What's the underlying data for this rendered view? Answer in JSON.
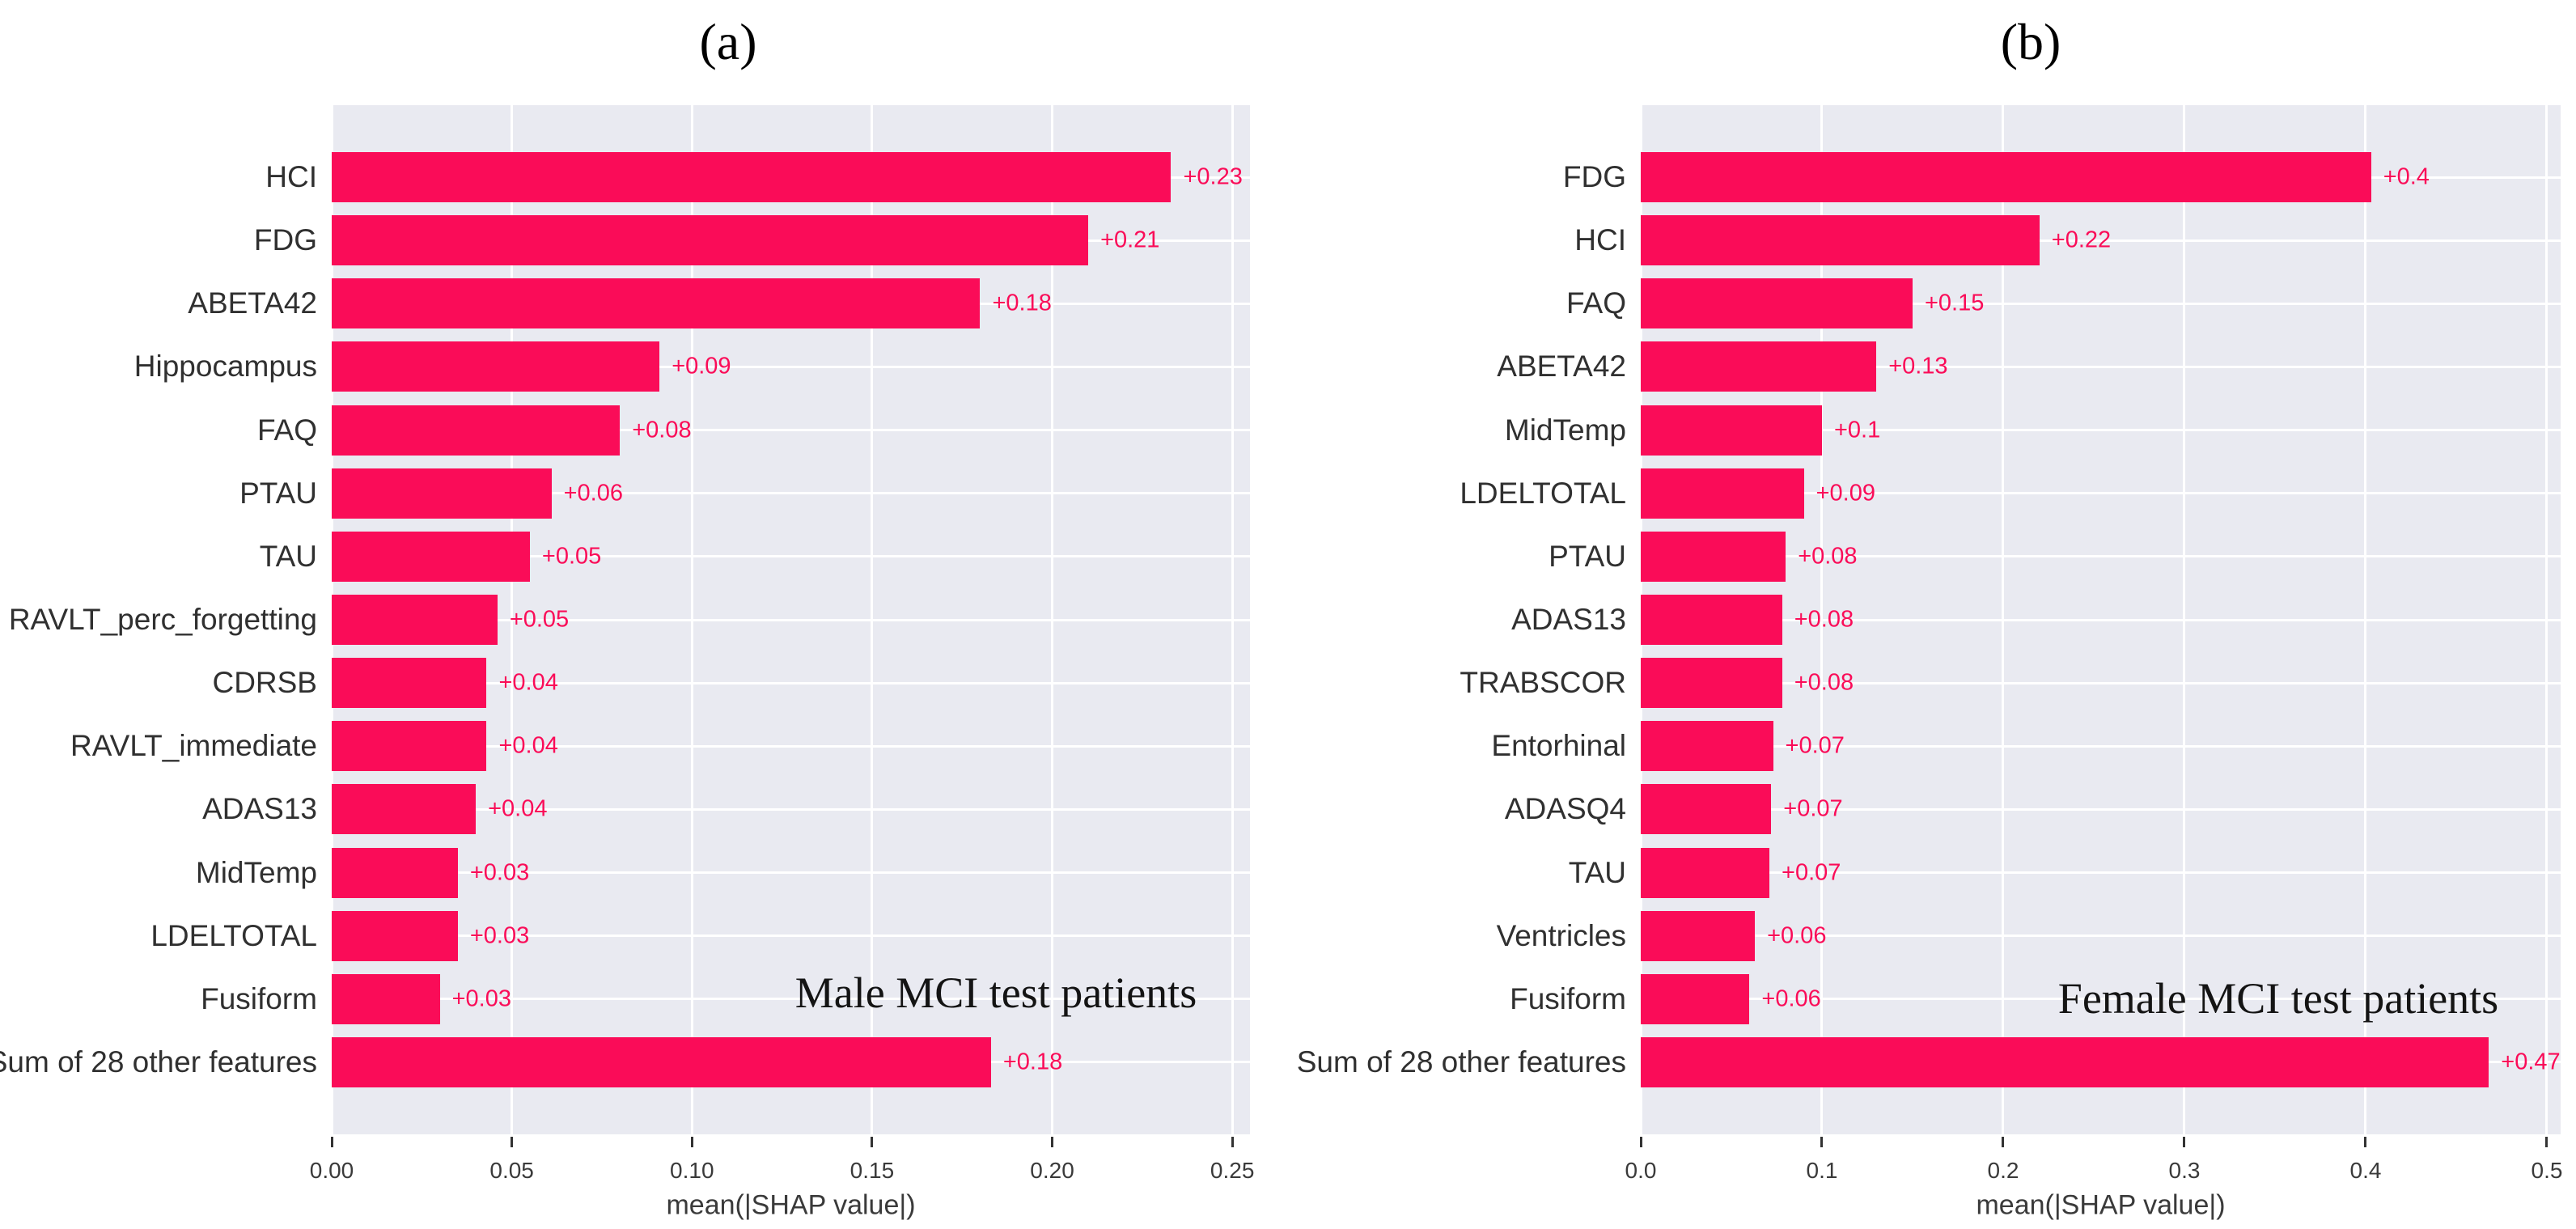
{
  "colors": {
    "bar": "#fa0c58",
    "value_label": "#fa0c58",
    "plot_background": "#e9eaf1",
    "gridline": "#ffffff",
    "tick_mark": "#333333",
    "axis_text": "#3a3a3a",
    "category_text": "#303030",
    "annotation_text": "#141414",
    "title_text": "#000000"
  },
  "chart_data": [
    {
      "type": "bar",
      "orientation": "horizontal",
      "title": "(a)",
      "annotation": "Male MCI test patients",
      "xlabel": "mean(|SHAP value|)",
      "grid": true,
      "legend": "none",
      "categories": [
        "HCI",
        "FDG",
        "ABETA42",
        "Hippocampus",
        "FAQ",
        "PTAU",
        "TAU",
        "RAVLT_perc_forgetting",
        "CDRSB",
        "RAVLT_immediate",
        "ADAS13",
        "MidTemp",
        "LDELTOTAL",
        "Fusiform",
        "Sum of 28 other features"
      ],
      "values": [
        0.233,
        0.21,
        0.18,
        0.091,
        0.08,
        0.061,
        0.055,
        0.046,
        0.043,
        0.043,
        0.04,
        0.035,
        0.035,
        0.03,
        0.183
      ],
      "value_labels": [
        "+0.23",
        "+0.21",
        "+0.18",
        "+0.09",
        "+0.08",
        "+0.06",
        "+0.05",
        "+0.05",
        "+0.04",
        "+0.04",
        "+0.04",
        "+0.03",
        "+0.03",
        "+0.03",
        "+0.18"
      ],
      "xticks": {
        "values": [
          0,
          0.05,
          0.1,
          0.15,
          0.2,
          0.25
        ],
        "labels": [
          "0.00",
          "0.05",
          "0.10",
          "0.15",
          "0.20",
          "0.25"
        ]
      },
      "xlim": [
        0,
        0.2549
      ]
    },
    {
      "type": "bar",
      "orientation": "horizontal",
      "title": "(b)",
      "annotation": "Female MCI test patients",
      "xlabel": "mean(|SHAP value|)",
      "grid": true,
      "legend": "none",
      "categories": [
        "FDG",
        "HCI",
        "FAQ",
        "ABETA42",
        "MidTemp",
        "LDELTOTAL",
        "PTAU",
        "ADAS13",
        "TRABSCOR",
        "Entorhinal",
        "ADASQ4",
        "TAU",
        "Ventricles",
        "Fusiform",
        "Sum of 28 other features"
      ],
      "values": [
        0.403,
        0.22,
        0.15,
        0.13,
        0.1,
        0.09,
        0.08,
        0.078,
        0.078,
        0.073,
        0.072,
        0.071,
        0.063,
        0.06,
        0.468
      ],
      "value_labels": [
        "+0.4",
        "+0.22",
        "+0.15",
        "+0.13",
        "+0.1",
        "+0.09",
        "+0.08",
        "+0.08",
        "+0.08",
        "+0.07",
        "+0.07",
        "+0.07",
        "+0.06",
        "+0.06",
        "+0.47"
      ],
      "xticks": {
        "values": [
          0,
          0.1,
          0.2,
          0.3,
          0.4,
          0.5
        ],
        "labels": [
          "0.0",
          "0.1",
          "0.2",
          "0.3",
          "0.4",
          "0.5"
        ]
      },
      "xlim": [
        0,
        0.5076
      ]
    }
  ]
}
